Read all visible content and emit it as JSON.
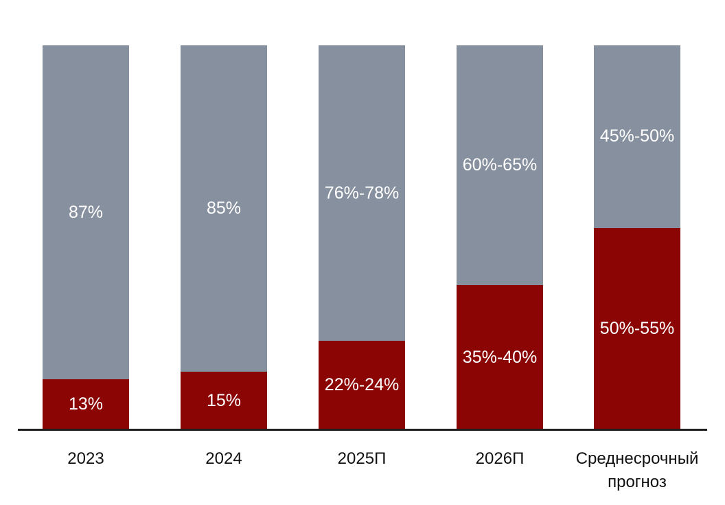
{
  "chart_data": {
    "type": "bar",
    "stacked": true,
    "orientation": "vertical",
    "title": "",
    "xlabel": "",
    "ylabel": "",
    "categories": [
      "2023",
      "2024",
      "2025П",
      "2026П",
      "Среднесрочный прогноз"
    ],
    "series": [
      {
        "name": "gray-top-share",
        "color": "#87909E",
        "values": [
          87,
          85,
          77,
          62.5,
          47.5
        ],
        "labels": [
          "87%",
          "85%",
          "76%-78%",
          "60%-65%",
          "45%-50%"
        ]
      },
      {
        "name": "dark-red-bottom-share",
        "color": "#8B0505",
        "values": [
          13,
          15,
          23,
          37.5,
          52.5
        ],
        "labels": [
          "13%",
          "15%",
          "22%-24%",
          "35%-40%",
          "50%-55%"
        ]
      }
    ],
    "ylim": [
      0,
      100
    ],
    "unit": "%",
    "grid": false,
    "legend": null,
    "bar_label_color": "#FFFFFF",
    "axis_label_color": "#111111",
    "axis_line_color": "#1F1F1F",
    "background": "#FFFFFF"
  }
}
